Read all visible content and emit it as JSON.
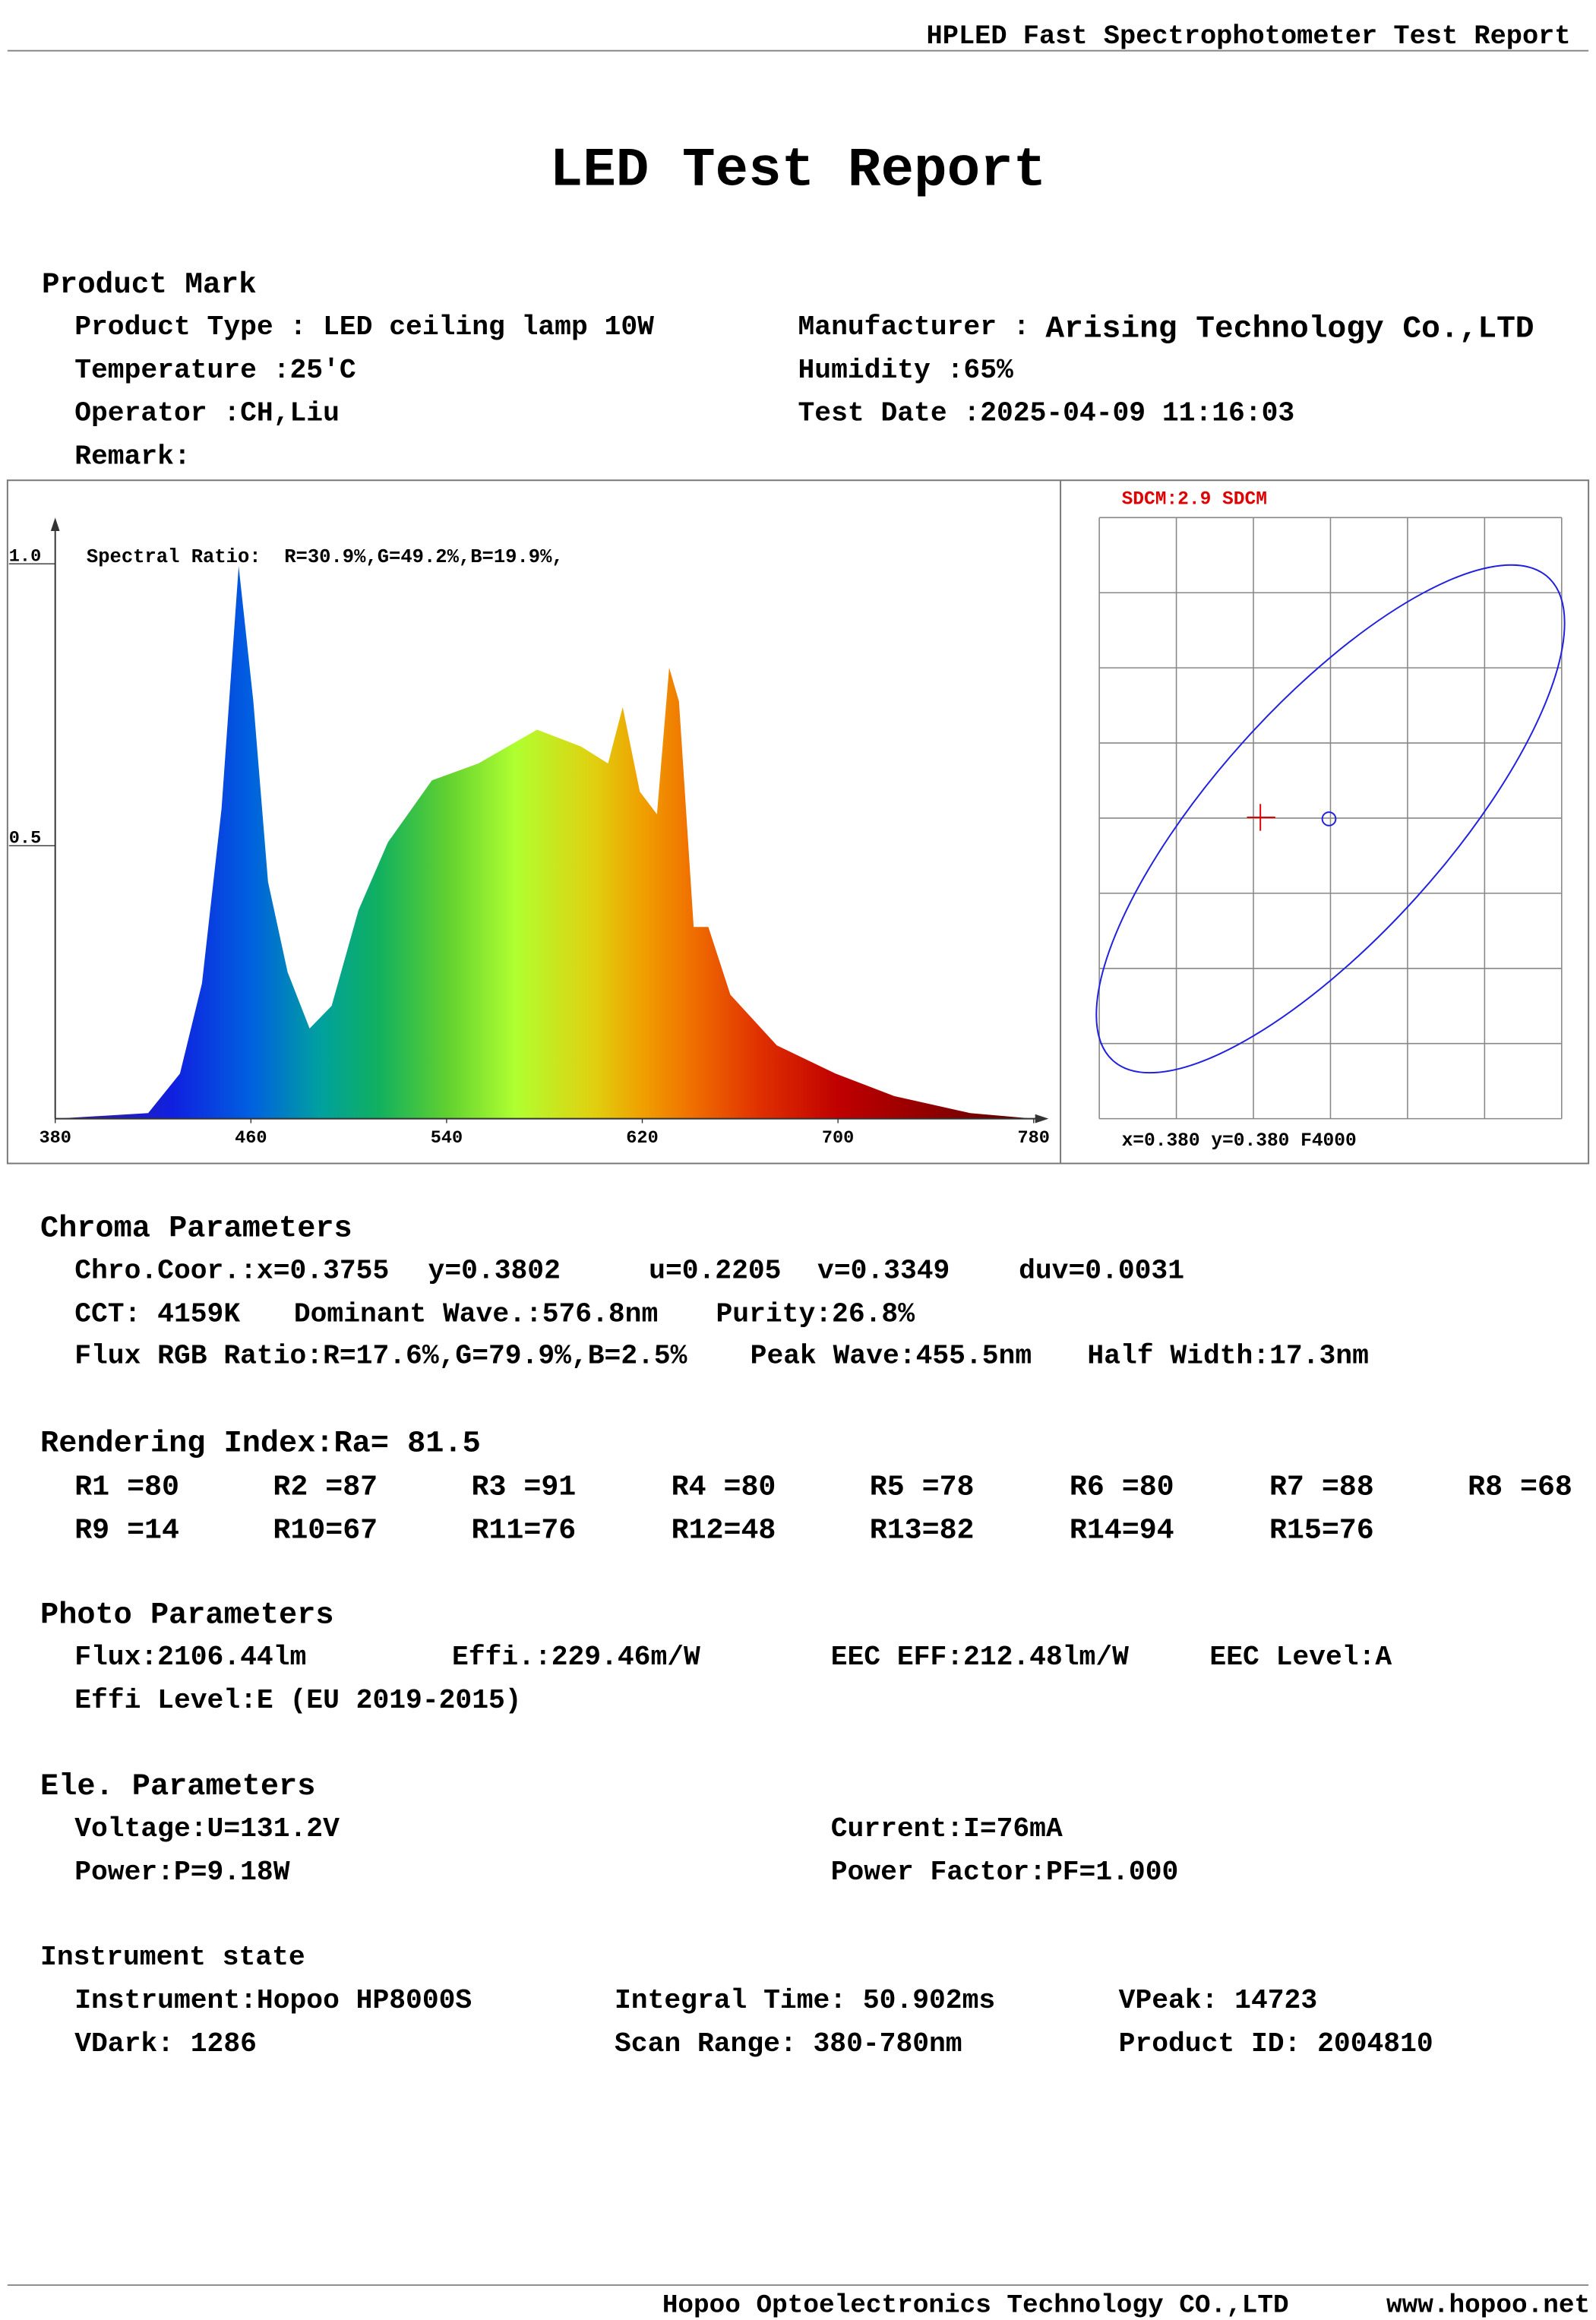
{
  "header": {
    "title": "HPLED Fast Spectrophotometer Test Report"
  },
  "title": "LED Test Report",
  "product": {
    "heading": "Product Mark",
    "left": [
      "Product Type : LED ceiling lamp 10W",
      "Temperature :25'C",
      "Operator :CH,Liu",
      "Remark:"
    ],
    "manufacturer_label": "Manufacturer :",
    "manufacturer_value": "Arising Technology Co.,LTD",
    "right": [
      "Humidity :65%",
      "Test Date :2025-04-09 11:16:03"
    ]
  },
  "chart_data": {
    "type": "area",
    "annotation": "Spectral Ratio:  R=30.9%,G=49.2%,B=19.9%,",
    "x": [
      380,
      418,
      431,
      440,
      448,
      455,
      461,
      467,
      475,
      484,
      493,
      504,
      516,
      534,
      553,
      577,
      595,
      606,
      612,
      619,
      626,
      631,
      635,
      641,
      647,
      656,
      675,
      699,
      723,
      754,
      780
    ],
    "values": [
      0.0,
      0.01,
      0.08,
      0.24,
      0.55,
      0.98,
      0.74,
      0.42,
      0.26,
      0.16,
      0.2,
      0.37,
      0.49,
      0.6,
      0.63,
      0.69,
      0.66,
      0.63,
      0.73,
      0.58,
      0.54,
      0.8,
      0.74,
      0.34,
      0.34,
      0.22,
      0.13,
      0.08,
      0.04,
      0.01,
      0.0
    ],
    "xlim": [
      380,
      780
    ],
    "ylim": [
      0,
      1
    ],
    "xticks": [
      380,
      460,
      540,
      620,
      700,
      780
    ],
    "yticks": [
      0.5,
      {
        "value": 1,
        "label": "1.0"
      }
    ]
  },
  "sdcm": {
    "title": "SDCM:2.9 SDCM",
    "caption": "x=0.380 y=0.380 F4000"
  },
  "sections": [
    {
      "heading": "Chroma Parameters",
      "rows": [
        [
          "Chro.Coor.:x=0.3755",
          "y=0.3802",
          "u=0.2205",
          "v=0.3349",
          "duv=0.0031"
        ],
        [
          "CCT: 4159K",
          "Dominant Wave.:576.8nm",
          "Purity:26.8%"
        ],
        [
          "Flux RGB Ratio:R=17.6%,G=79.9%,B=2.5%",
          "Peak Wave:455.5nm",
          "Half Width:17.3nm"
        ]
      ]
    },
    {
      "heading": "Rendering Index:Ra= 81.5",
      "rows": [
        [
          "R1 =80",
          "R2 =87",
          "R3 =91",
          "R4 =80",
          "R5 =78",
          "R6 =80",
          "R7 =88",
          "R8 =68"
        ],
        [
          "R9 =14",
          "R10=67",
          "R11=76",
          "R12=48",
          "R13=82",
          "R14=94",
          "R15=76"
        ]
      ]
    },
    {
      "heading": "Photo Parameters",
      "rows": [
        [
          "Flux:2106.44lm",
          "Effi.:229.46m/W",
          "EEC EFF:212.48lm/W",
          "EEC Level:A"
        ],
        [
          "Effi Level:E (EU 2019-2015)"
        ]
      ]
    },
    {
      "heading": "Ele. Parameters",
      "rows": [
        [
          "Voltage:U=131.2V",
          "Current:I=76mA"
        ],
        [
          "Power:P=9.18W",
          "Power Factor:PF=1.000"
        ]
      ]
    },
    {
      "heading": "Instrument state",
      "rows": [
        [
          "Instrument:Hopoo HP8000S",
          "Integral Time: 50.902ms",
          "VPeak: 14723"
        ],
        [
          "VDark: 1286",
          "Scan Range: 380-780nm",
          "Product ID: 2004810"
        ]
      ]
    }
  ],
  "footer": {
    "company": "Hopoo Optoelectronics Technology CO.,LTD",
    "website": "www.hopoo.net"
  }
}
